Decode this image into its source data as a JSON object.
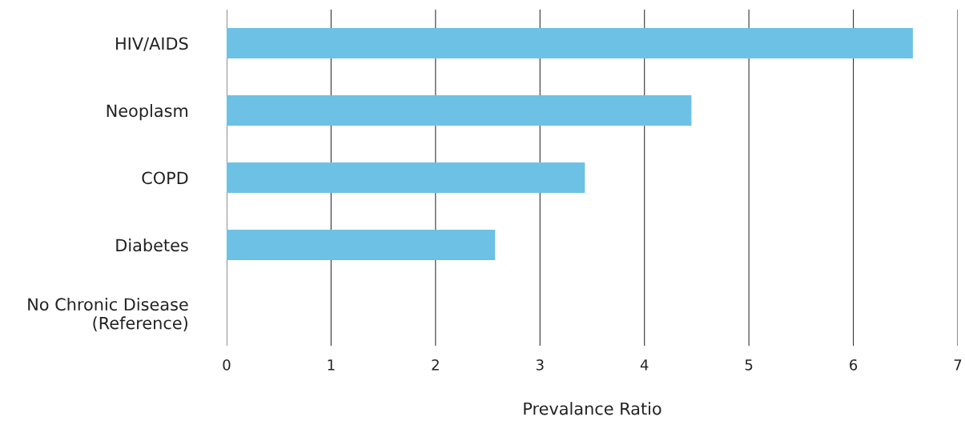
{
  "chart_data": {
    "type": "bar",
    "orientation": "horizontal",
    "xlabel": "Prevalance Ratio",
    "categories": [
      "HIV/AIDS",
      "Neoplasm",
      "COPD",
      "Diabetes",
      "No Chronic Disease\n(Reference)"
    ],
    "values": [
      6.57,
      4.45,
      3.43,
      2.57,
      null
    ],
    "color": "#6dc1e4",
    "xlim": [
      0,
      7
    ],
    "xticks": [
      0,
      1,
      2,
      3,
      4,
      5,
      6,
      7
    ],
    "grid": "x"
  }
}
